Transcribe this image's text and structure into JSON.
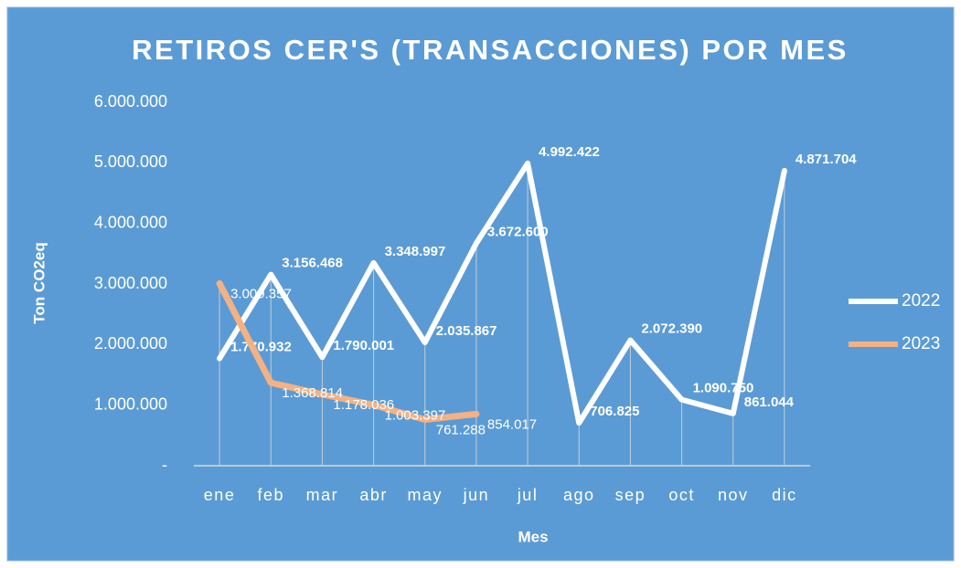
{
  "chart_data": {
    "type": "line",
    "title": "RETIROS CER'S (TRANSACCIONES) POR MES",
    "x_label": "Mes",
    "y_label": "Ton CO2eq",
    "categories": [
      "ene",
      "feb",
      "mar",
      "abr",
      "may",
      "jun",
      "jul",
      "ago",
      "sep",
      "oct",
      "nov",
      "dic"
    ],
    "series": [
      {
        "name": "2022",
        "color": "#ffffff",
        "values": [
          1770932,
          3156468,
          1790001,
          3348997,
          2035867,
          3672600,
          4992422,
          706825,
          2072390,
          1090750,
          861044,
          4871704
        ],
        "value_labels": [
          "1.770.932",
          "3.156.468",
          "1.790.001",
          "3.348.997",
          "2.035.867",
          "3.672.600",
          "4.992.422",
          "706.825",
          "2.072.390",
          "1.090.750",
          "861.044",
          "4.871.704"
        ]
      },
      {
        "name": "2023",
        "color": "#f4b183",
        "values": [
          3009357,
          1368814,
          1178036,
          1003397,
          761288,
          854017,
          null,
          null,
          null,
          null,
          null,
          null
        ],
        "value_labels": [
          "3.009.357",
          "1.368.814",
          "1.178.036",
          "1.003.397",
          "761.288",
          "854.017",
          null,
          null,
          null,
          null,
          null,
          null
        ]
      }
    ],
    "ylim": [
      0,
      6000000
    ],
    "yticks": [
      {
        "value": 0,
        "label": "-"
      },
      {
        "value": 1000000,
        "label": "1.000.000"
      },
      {
        "value": 2000000,
        "label": "2.000.000"
      },
      {
        "value": 3000000,
        "label": "3.000.000"
      },
      {
        "value": 4000000,
        "label": "4.000.000"
      },
      {
        "value": 5000000,
        "label": "5.000.000"
      },
      {
        "value": 6000000,
        "label": "6.000.000"
      }
    ],
    "legend": "right"
  }
}
